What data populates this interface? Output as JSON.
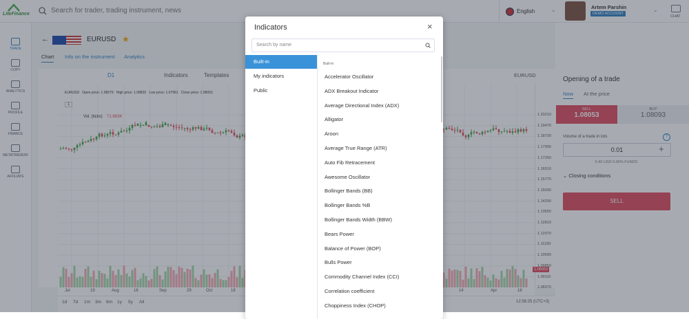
{
  "header": {
    "logo": "LiteFinance",
    "search_placeholder": "Search for trader, trading instrument, news",
    "language": "English",
    "user_name": "Artem Parshin",
    "account_type": "DEMO ACCOUNT",
    "chat": "CHAT"
  },
  "sidebar": [
    "TRADE",
    "COPY",
    "ANALYTICS",
    "PROFILE",
    "FINANCE",
    "METATRADER5",
    "AFFILIATE"
  ],
  "instrument": {
    "symbol": "EURUSD",
    "tabs": [
      "Chart",
      "Info on the instrument",
      "Analytics"
    ]
  },
  "toolbar": {
    "timeframe": "D1",
    "indicators": "Indicators",
    "templates": "Templates",
    "symbol": "EURUSD"
  },
  "chart_legend": {
    "symbol": "EURUSD",
    "open": "Open price: 1.08279",
    "high": "High price: 1.08820",
    "low": "Low price: 1.07961",
    "close": "Close price: 1.08053",
    "pane_index": "1",
    "volume_label": "Vol. (ticks)",
    "volume_value": "71.883K"
  },
  "price_axis": [
    "1.20210",
    "1.19470",
    "1.18730",
    "1.17990",
    "1.17250",
    "1.16510",
    "1.15770",
    "1.15030",
    "1.14290",
    "1.13550",
    "1.12810",
    "1.12070",
    "1.11330",
    "1.10590",
    "1.09850",
    "1.09110",
    "1.08370",
    "1.07630",
    "1.06890"
  ],
  "current_price": "1.08053",
  "date_axis": [
    "Jul",
    "19",
    "Aug",
    "16",
    "Sep",
    "29",
    "Oct",
    "18",
    "14",
    "Apr",
    "18"
  ],
  "ranges": [
    "1d",
    "7d",
    "1m",
    "3m",
    "6m",
    "1y",
    "5y",
    "All"
  ],
  "clock": "12:58:25 (UTC+3)",
  "trade_panel": {
    "title": "Opening of a trade",
    "tabs": [
      "Now",
      "At the price"
    ],
    "sell_label": "SELL",
    "sell_price": "1.08053",
    "buy_label": "BUY",
    "buy_price": "1.08093",
    "volume_label": "Volume of a trade in lots",
    "volume": "0.01",
    "funds": "5.40 USD  0.06% FUNDS",
    "closing_conditions": "Closing conditions",
    "sell_button": "SELL"
  },
  "modal": {
    "title": "Indicators",
    "search_placeholder": "Search by name",
    "categories": [
      "Built-in",
      "My indicators",
      "Public"
    ],
    "section_header": "Built-in",
    "indicators": [
      "Accelerator Oscillator",
      "ADX Breakout Indicator",
      "Average Directional Index (ADX)",
      "Alligator",
      "Aroon",
      "Average True Range (ATR)",
      "Auto Fib Retracement",
      "Awesome Oscillator",
      "Bollinger Bands (BB)",
      "Bollinger Bands %B",
      "Bollinger Bands Width (BBW)",
      "Bears Power",
      "Balance of Power (BOP)",
      "Bulls Power",
      "Commodity Channel Index (CCI)",
      "Correlation coefficient",
      "Choppiness Index (CHOP)"
    ]
  }
}
